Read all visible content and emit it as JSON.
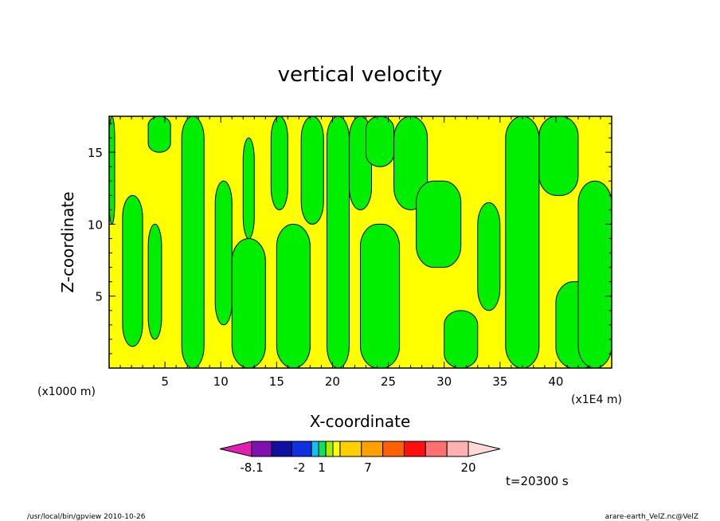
{
  "chart_data": {
    "type": "heatmap",
    "title": "vertical velocity",
    "xlabel": "X-coordinate",
    "ylabel": "Z-coordinate",
    "x_unit_left": "(x1000 m)",
    "x_unit_right": "(x1E4 m)",
    "xlim": [
      0,
      45
    ],
    "ylim": [
      0,
      17.5
    ],
    "x_ticks": [
      5,
      10,
      15,
      20,
      25,
      30,
      35,
      40
    ],
    "y_ticks": [
      5,
      10,
      15
    ],
    "time_label": "t=20300 s",
    "colorbar": {
      "labels": [
        {
          "text": "-8.1",
          "value": -8.1
        },
        {
          "text": "-2",
          "value": -2
        },
        {
          "text": "1",
          "value": 1
        },
        {
          "text": "7",
          "value": 7
        },
        {
          "text": "20",
          "value": 20
        }
      ],
      "colors": [
        "#e020b0",
        "#8010b0",
        "#1010a0",
        "#1030e0",
        "#10c0f0",
        "#10e060",
        "#a0f000",
        "#ffff00",
        "#ffd000",
        "#ffa000",
        "#ff6000",
        "#ff1010",
        "#ff7070",
        "#ffb0b0",
        "#ffd8d8"
      ]
    },
    "fill_colors": {
      "positive": "#ffff00",
      "negative": "#00ee00"
    },
    "green_regions": [
      {
        "x0": 0,
        "x1": 0.5,
        "y0": 10,
        "y1": 17.5
      },
      {
        "x0": 1.2,
        "x1": 3,
        "y0": 1.5,
        "y1": 12
      },
      {
        "x0": 3.5,
        "x1": 4.7,
        "y0": 2,
        "y1": 10
      },
      {
        "x0": 3.5,
        "x1": 5.5,
        "y0": 15,
        "y1": 17.5
      },
      {
        "x0": 6.5,
        "x1": 8.5,
        "y0": 0,
        "y1": 17.5
      },
      {
        "x0": 9.5,
        "x1": 11,
        "y0": 3,
        "y1": 13
      },
      {
        "x0": 11,
        "x1": 14,
        "y0": 0,
        "y1": 9
      },
      {
        "x0": 12,
        "x1": 13,
        "y0": 9,
        "y1": 16
      },
      {
        "x0": 14.5,
        "x1": 16,
        "y0": 11,
        "y1": 17.5
      },
      {
        "x0": 15,
        "x1": 18,
        "y0": 0,
        "y1": 10
      },
      {
        "x0": 17.2,
        "x1": 19.2,
        "y0": 10,
        "y1": 17.5
      },
      {
        "x0": 19.5,
        "x1": 21.5,
        "y0": 0,
        "y1": 17.5
      },
      {
        "x0": 21.5,
        "x1": 23.5,
        "y0": 11,
        "y1": 17.5
      },
      {
        "x0": 22.5,
        "x1": 26,
        "y0": 0,
        "y1": 10
      },
      {
        "x0": 23,
        "x1": 25.5,
        "y0": 14,
        "y1": 17.5
      },
      {
        "x0": 25.5,
        "x1": 28.5,
        "y0": 11,
        "y1": 17.5
      },
      {
        "x0": 27.5,
        "x1": 31.5,
        "y0": 7,
        "y1": 13
      },
      {
        "x0": 30,
        "x1": 33,
        "y0": 0,
        "y1": 4
      },
      {
        "x0": 33,
        "x1": 35,
        "y0": 4,
        "y1": 11.5
      },
      {
        "x0": 35.5,
        "x1": 38.5,
        "y0": 0,
        "y1": 17.5
      },
      {
        "x0": 38.5,
        "x1": 42,
        "y0": 12,
        "y1": 17.5
      },
      {
        "x0": 40,
        "x1": 44,
        "y0": 0,
        "y1": 6
      },
      {
        "x0": 42,
        "x1": 45,
        "y0": 0,
        "y1": 13
      }
    ]
  },
  "footer": {
    "left": "/usr/local/bin/gpview  2010-10-26",
    "right": "arare-earth_VelZ.nc@VelZ"
  }
}
